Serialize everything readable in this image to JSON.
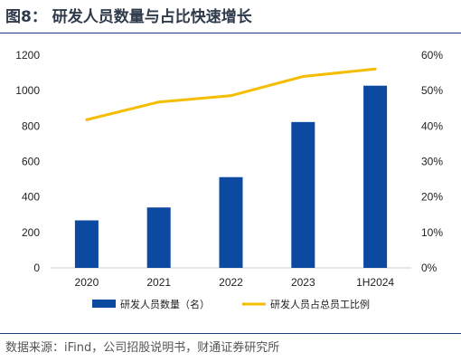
{
  "header": {
    "title": "图8：  研发人员数量与占比快速增长"
  },
  "footer": {
    "source": "数据来源：iFind，公司招股说明书，财通证券研究所"
  },
  "colors": {
    "bar": "#0b4aa0",
    "line": "#f5bd00",
    "text": "#222222",
    "axis": "#cfcfcf"
  },
  "chart_data": {
    "type": "bar",
    "categories": [
      "2020",
      "2021",
      "2022",
      "2023",
      "1H2024"
    ],
    "series": [
      {
        "name": "研发人员数量（名）",
        "type": "bar",
        "axis": "left",
        "values": [
          268,
          341,
          512,
          823,
          1028
        ]
      },
      {
        "name": "研发人员占总员工比例",
        "type": "line",
        "axis": "right",
        "values": [
          0.418,
          0.468,
          0.486,
          0.54,
          0.561
        ]
      }
    ],
    "y_left": {
      "min": 0,
      "max": 1200,
      "ticks": [
        "0",
        "200",
        "400",
        "600",
        "800",
        "1000",
        "1200"
      ]
    },
    "y_right": {
      "min": 0,
      "max": 0.6,
      "ticks": [
        "0%",
        "10%",
        "20%",
        "30%",
        "40%",
        "50%",
        "60%"
      ]
    },
    "grid": false,
    "legend": "bottom"
  }
}
